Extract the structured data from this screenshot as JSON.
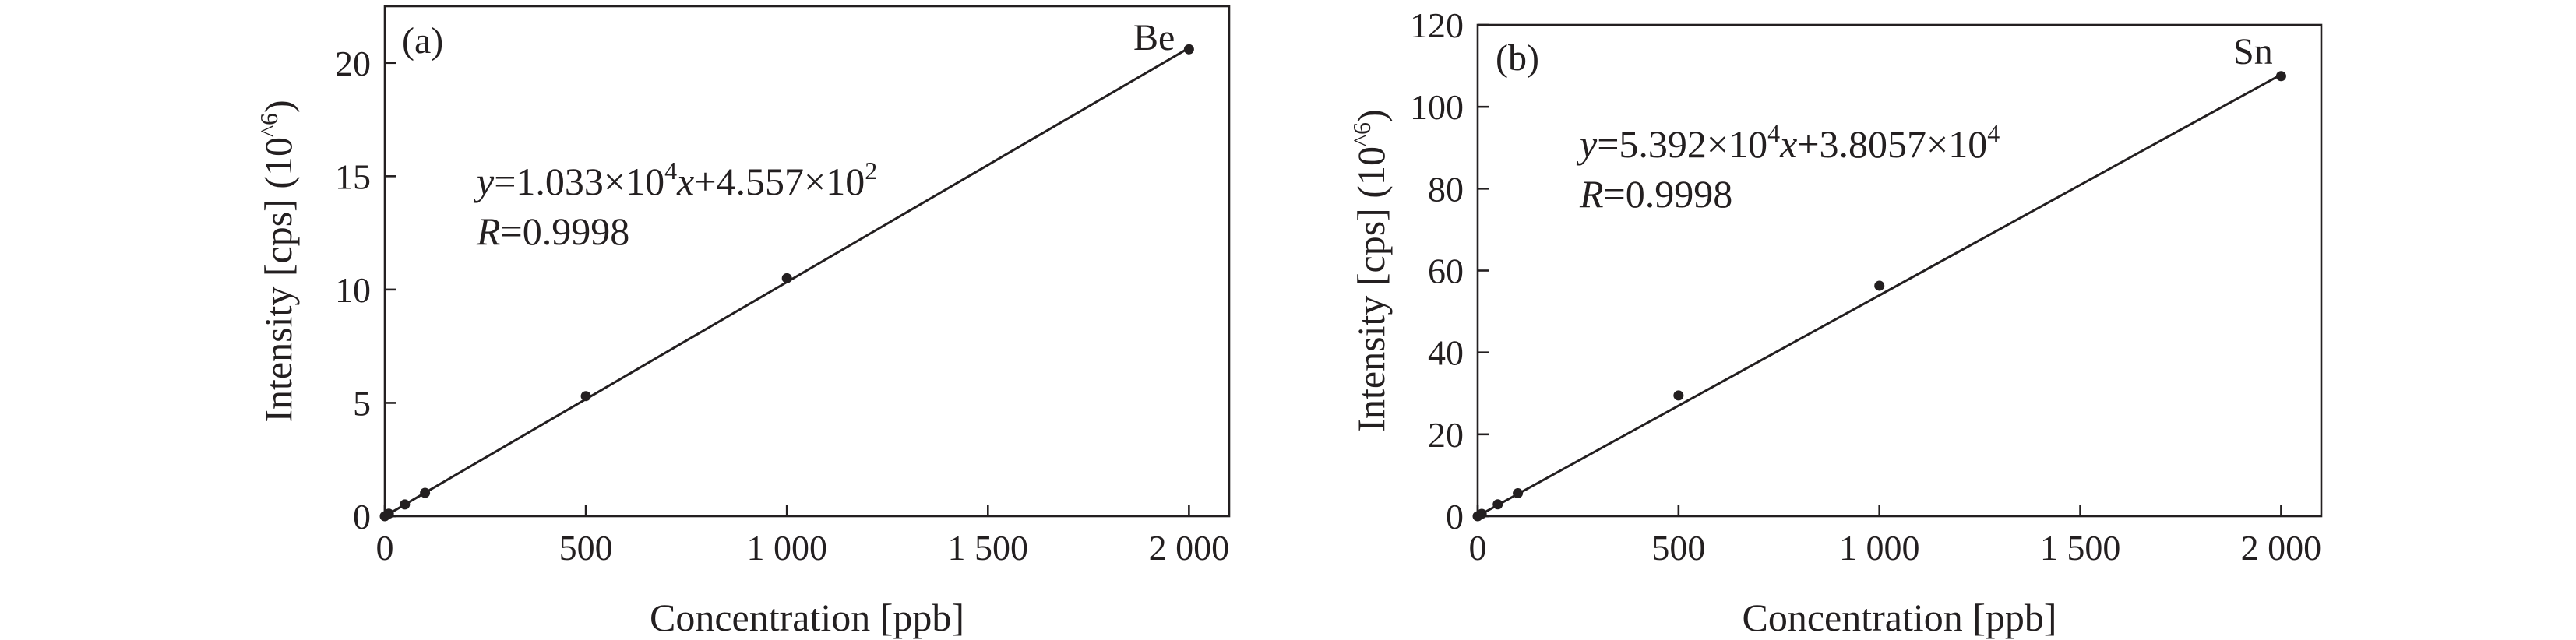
{
  "chart_data": [
    {
      "type": "scatter",
      "panel_label": "(a)",
      "element": "Be",
      "xlabel": "Concentration [ppb]",
      "ylabel": "Intensity [cps] (10^6)",
      "ylabel_parts": {
        "main": "Intensity [cps] (10",
        "sup": "^6",
        "end": ")"
      },
      "xlim": [
        0,
        2100
      ],
      "ylim": [
        0,
        22.5
      ],
      "xticks": [
        0,
        500,
        1000,
        1500,
        2000
      ],
      "xtick_labels": [
        "0",
        "500",
        "1 000",
        "1 500",
        "2 000"
      ],
      "yticks": [
        0,
        5,
        10,
        15,
        20
      ],
      "ytick_labels": [
        "0",
        "5",
        "10",
        "15",
        "20"
      ],
      "x": [
        0,
        10,
        50,
        100,
        500,
        1000,
        2000
      ],
      "y": [
        0.0,
        0.11,
        0.52,
        1.03,
        5.3,
        10.5,
        20.6
      ],
      "fit": {
        "slope": 10330,
        "intercept": 455.7,
        "scale": 1000000
      },
      "equation": {
        "y_var": "y",
        "eq1": "=1.033×10",
        "sup1": "4",
        "x_var": "x",
        "eq2": "+4.557×10",
        "sup2": "2",
        "r_var": "R",
        "r_val": "=0.9998"
      }
    },
    {
      "type": "scatter",
      "panel_label": "(b)",
      "element": "Sn",
      "xlabel": "Concentration [ppb]",
      "ylabel": "Intensity [cps] (10^6)",
      "ylabel_parts": {
        "main": "Intensity [cps] (10",
        "sup": "^6",
        "end": ")"
      },
      "xlim": [
        0,
        2100
      ],
      "ylim": [
        0,
        120
      ],
      "xticks": [
        0,
        500,
        1000,
        1500,
        2000
      ],
      "xtick_labels": [
        "0",
        "500",
        "1 000",
        "1 500",
        "2 000"
      ],
      "yticks": [
        0,
        20,
        40,
        60,
        80,
        100,
        120
      ],
      "ytick_labels": [
        "0",
        "20",
        "40",
        "60",
        "80",
        "100",
        "120"
      ],
      "x": [
        0,
        10,
        50,
        100,
        500,
        1000,
        2000
      ],
      "y": [
        0.0,
        0.57,
        2.9,
        5.6,
        29.5,
        56.3,
        107.5
      ],
      "fit": {
        "slope": 53920,
        "intercept": 38057,
        "scale": 1000000
      },
      "equation": {
        "y_var": "y",
        "eq1": "=5.392×10",
        "sup1": "4",
        "x_var": "x",
        "eq2": "+3.8057×10",
        "sup2": "4",
        "r_var": "R",
        "r_val": "=0.9998"
      }
    }
  ]
}
